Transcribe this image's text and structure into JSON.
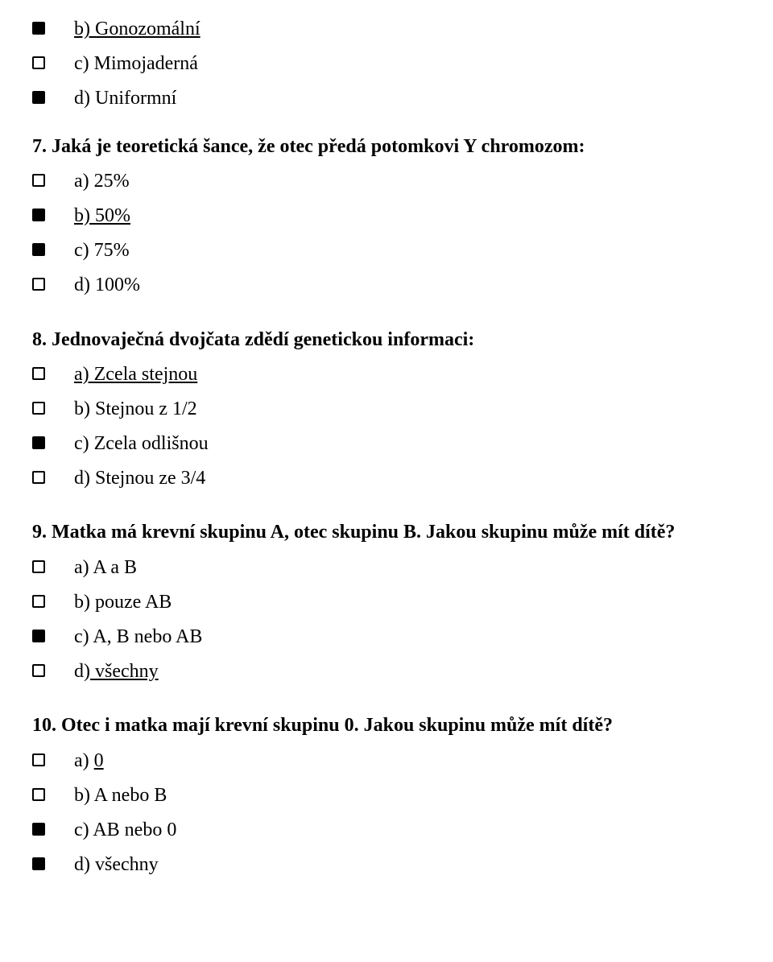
{
  "colors": {
    "text": "#000000",
    "background": "#ffffff",
    "bullet_dark": "#000000",
    "bullet_light_border": "#000000",
    "bullet_light_fill": "#ffffff"
  },
  "typography": {
    "font_family": "Times New Roman",
    "body_fontsize_pt": 18,
    "question_fontweight": "bold"
  },
  "blocks": [
    {
      "type": "options",
      "items": [
        {
          "label": "b) Gonozomální",
          "underline": true,
          "bullet": "dark"
        },
        {
          "label": "c) Mimojaderná",
          "underline": false,
          "bullet": "light"
        },
        {
          "label": "d) Uniformní",
          "underline": false,
          "bullet": "dark"
        }
      ]
    },
    {
      "type": "question",
      "text": "7. Jaká je teoretická šance, že otec předá potomkovi Y chromozom:"
    },
    {
      "type": "options",
      "items": [
        {
          "label": "a) 25%",
          "underline": false,
          "bullet": "light"
        },
        {
          "label": "b) 50%",
          "underline": true,
          "bullet": "dark"
        },
        {
          "label": "c) 75%",
          "underline": false,
          "bullet": "dark"
        },
        {
          "label": "d) 100%",
          "underline": false,
          "bullet": "light"
        }
      ]
    },
    {
      "type": "question",
      "text": "8. Jednovaječná dvojčata zdědí genetickou informaci:"
    },
    {
      "type": "options",
      "items": [
        {
          "label": "a) Zcela stejnou",
          "underline": true,
          "bullet": "light"
        },
        {
          "label": "b) Stejnou z 1/2",
          "underline": false,
          "bullet": "light"
        },
        {
          "label": "c) Zcela odlišnou",
          "underline": false,
          "bullet": "dark"
        },
        {
          "label": "d) Stejnou ze 3/4",
          "underline": false,
          "bullet": "light"
        }
      ]
    },
    {
      "type": "question",
      "text": "9. Matka má krevní skupinu A, otec skupinu B. Jakou skupinu může mít dítě?"
    },
    {
      "type": "options",
      "items": [
        {
          "label": "a) A a B",
          "underline": false,
          "bullet": "light"
        },
        {
          "label": "b) pouze AB",
          "underline": false,
          "bullet": "light"
        },
        {
          "label": "c) A, B nebo AB",
          "underline": false,
          "bullet": "dark"
        },
        {
          "label": "d) všechny",
          "underline": true,
          "bullet": "light",
          "prefix_plain": "d)",
          "rest_underline": " všechny"
        }
      ]
    },
    {
      "type": "question",
      "text": "10. Otec i matka mají krevní skupinu 0. Jakou skupinu může mít dítě?"
    },
    {
      "type": "options",
      "items": [
        {
          "label": "a) 0",
          "underline": true,
          "bullet": "light",
          "prefix_plain": "a) ",
          "rest_underline": "0"
        },
        {
          "label": "b) A nebo B",
          "underline": false,
          "bullet": "light"
        },
        {
          "label": "c) AB nebo 0",
          "underline": false,
          "bullet": "dark"
        },
        {
          "label": "d) všechny",
          "underline": false,
          "bullet": "dark"
        }
      ]
    }
  ]
}
